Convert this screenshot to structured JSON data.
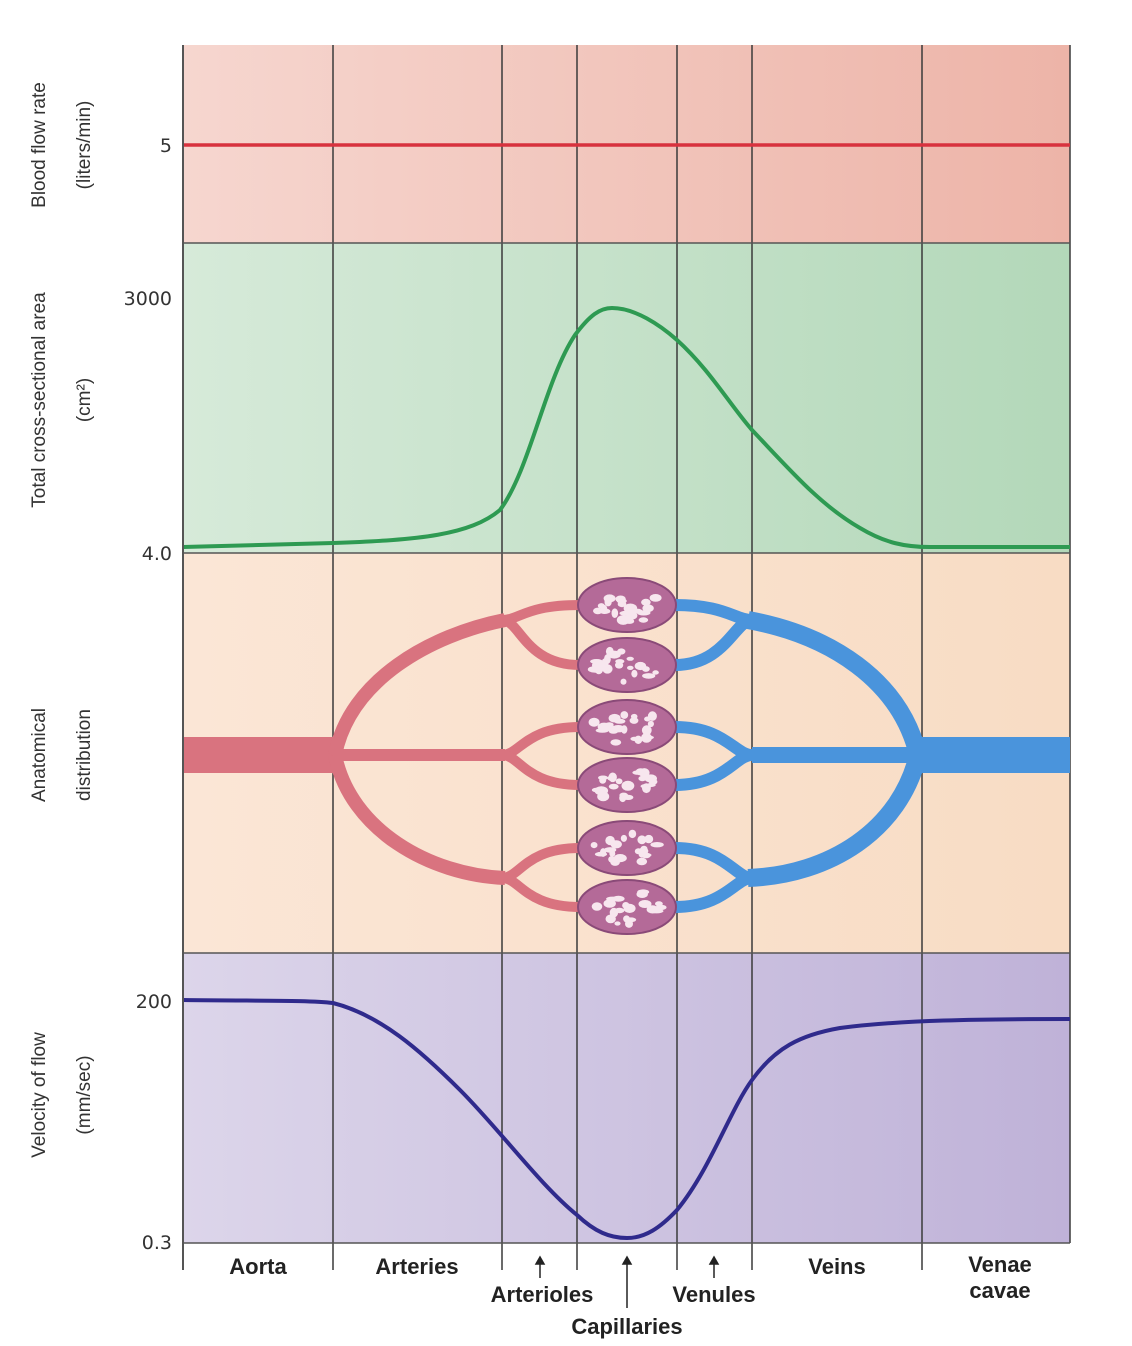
{
  "panels": {
    "flow_rate": {
      "label_line1": "Blood flow rate",
      "label_line2": "(liters/min)",
      "tick": "5",
      "color": "#d8323e"
    },
    "cross_section": {
      "label_line1": "Total cross-sectional area",
      "label_line2": "(cm²)",
      "tick_top": "3000",
      "tick_bottom": "4.0",
      "color": "#2e9a52"
    },
    "anatomy": {
      "label_line1": "Anatomical",
      "label_line2": "distribution",
      "artery_color": "#d9737f",
      "vein_color": "#4a94dc",
      "capillary_color": "#b46a98"
    },
    "velocity": {
      "label_line1": "Velocity of flow",
      "label_line2": "(mm/sec)",
      "tick_top": "200",
      "tick_bottom": "0.3",
      "color": "#2f2a8c"
    }
  },
  "vessels": {
    "aorta": "Aorta",
    "arteries": "Arteries",
    "arterioles": "Arterioles",
    "capillaries": "Capillaries",
    "venules": "Venules",
    "veins": "Veins",
    "venae_cavae_1": "Venae",
    "venae_cavae_2": "cavae"
  }
}
